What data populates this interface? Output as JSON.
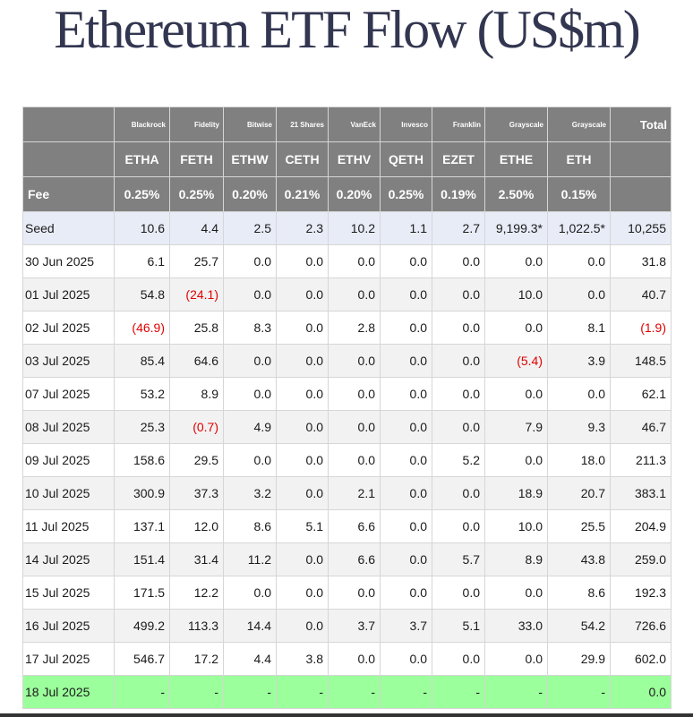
{
  "title": "Ethereum ETF Flow (US$m)",
  "issuers": [
    "Blackrock",
    "Fidelity",
    "Bitwise",
    "21 Shares",
    "VanEck",
    "Invesco",
    "Franklin",
    "Grayscale",
    "Grayscale"
  ],
  "total_label": "Total",
  "tickers": [
    "ETHA",
    "FETH",
    "ETHW",
    "CETH",
    "ETHV",
    "QETH",
    "EZET",
    "ETHE",
    "ETH"
  ],
  "fee_label": "Fee",
  "fees": [
    "0.25%",
    "0.25%",
    "0.20%",
    "0.21%",
    "0.20%",
    "0.25%",
    "0.19%",
    "2.50%",
    "0.15%"
  ],
  "colors": {
    "header_bg": "#808080",
    "seed_bg": "#e8ecf7",
    "stripe_bg": "#f2f2f2",
    "latest_bg": "#9bff9b",
    "negative": "#e00000",
    "title": "#323650"
  },
  "rows": [
    {
      "label": "Seed",
      "values": [
        "10.6",
        "4.4",
        "2.5",
        "2.3",
        "10.2",
        "1.1",
        "2.7",
        "9,199.3*",
        "1,022.5*"
      ],
      "total": "10,255"
    },
    {
      "label": "30 Jun 2025",
      "values": [
        "6.1",
        "25.7",
        "0.0",
        "0.0",
        "0.0",
        "0.0",
        "0.0",
        "0.0",
        "0.0"
      ],
      "total": "31.8"
    },
    {
      "label": "01 Jul 2025",
      "values": [
        "54.8",
        "(24.1)",
        "0.0",
        "0.0",
        "0.0",
        "0.0",
        "0.0",
        "10.0",
        "0.0"
      ],
      "total": "40.7"
    },
    {
      "label": "02 Jul 2025",
      "values": [
        "(46.9)",
        "25.8",
        "8.3",
        "0.0",
        "2.8",
        "0.0",
        "0.0",
        "0.0",
        "8.1"
      ],
      "total": "(1.9)"
    },
    {
      "label": "03 Jul 2025",
      "values": [
        "85.4",
        "64.6",
        "0.0",
        "0.0",
        "0.0",
        "0.0",
        "0.0",
        "(5.4)",
        "3.9"
      ],
      "total": "148.5"
    },
    {
      "label": "07 Jul 2025",
      "values": [
        "53.2",
        "8.9",
        "0.0",
        "0.0",
        "0.0",
        "0.0",
        "0.0",
        "0.0",
        "0.0"
      ],
      "total": "62.1"
    },
    {
      "label": "08 Jul 2025",
      "values": [
        "25.3",
        "(0.7)",
        "4.9",
        "0.0",
        "0.0",
        "0.0",
        "0.0",
        "7.9",
        "9.3"
      ],
      "total": "46.7"
    },
    {
      "label": "09 Jul 2025",
      "values": [
        "158.6",
        "29.5",
        "0.0",
        "0.0",
        "0.0",
        "0.0",
        "5.2",
        "0.0",
        "18.0"
      ],
      "total": "211.3"
    },
    {
      "label": "10 Jul 2025",
      "values": [
        "300.9",
        "37.3",
        "3.2",
        "0.0",
        "2.1",
        "0.0",
        "0.0",
        "18.9",
        "20.7"
      ],
      "total": "383.1"
    },
    {
      "label": "11 Jul 2025",
      "values": [
        "137.1",
        "12.0",
        "8.6",
        "5.1",
        "6.6",
        "0.0",
        "0.0",
        "10.0",
        "25.5"
      ],
      "total": "204.9"
    },
    {
      "label": "14 Jul 2025",
      "values": [
        "151.4",
        "31.4",
        "11.2",
        "0.0",
        "6.6",
        "0.0",
        "5.7",
        "8.9",
        "43.8"
      ],
      "total": "259.0"
    },
    {
      "label": "15 Jul 2025",
      "values": [
        "171.5",
        "12.2",
        "0.0",
        "0.0",
        "0.0",
        "0.0",
        "0.0",
        "0.0",
        "8.6"
      ],
      "total": "192.3"
    },
    {
      "label": "16 Jul 2025",
      "values": [
        "499.2",
        "113.3",
        "14.4",
        "0.0",
        "3.7",
        "3.7",
        "5.1",
        "33.0",
        "54.2"
      ],
      "total": "726.6"
    },
    {
      "label": "17 Jul 2025",
      "values": [
        "546.7",
        "17.2",
        "4.4",
        "3.8",
        "0.0",
        "0.0",
        "0.0",
        "0.0",
        "29.9"
      ],
      "total": "602.0"
    },
    {
      "label": "18 Jul 2025",
      "values": [
        "-",
        "-",
        "-",
        "-",
        "-",
        "-",
        "-",
        "-",
        "-"
      ],
      "total": "0.0"
    }
  ]
}
